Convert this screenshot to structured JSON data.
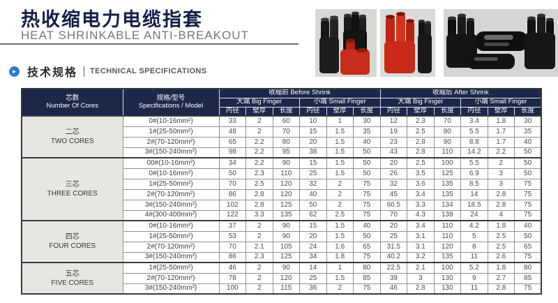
{
  "page": {
    "title_cn": "热收缩电力电缆指套",
    "title_en": "HEAT SHRINKABLE ANTI-BREAKOUT",
    "section_cn": "技术规格",
    "section_en": "TECHNICAL SPECIFICATIONS"
  },
  "icons": {
    "section_bullet": "arrow-right-circle",
    "section_bullet_glyph": "►"
  },
  "colors": {
    "title_navy": "#131f46",
    "header_navy": "#1c2749",
    "group_cell_gray": "#e7e6e3",
    "accent_blue": "#2e7fc0",
    "product_red": "#c62d1d",
    "product_black": "#171717",
    "photo_background": "#d8d7d4"
  },
  "table": {
    "header": {
      "cores_cn": "芯数",
      "cores_en": "Number Of Cores",
      "spec_cn": "规格/型号",
      "spec_en": "Specifications / Model",
      "before_shrink": "收缩前 Before Shrink",
      "after_shrink": "收缩后 After Shrink",
      "big_finger": "大端 Big Finger",
      "small_finger": "小端 Small Finger",
      "sub": [
        "内径",
        "壁厚",
        "长度"
      ]
    },
    "groups": [
      {
        "name_cn": "二芯",
        "name_en": "TWO CORES",
        "rows": [
          {
            "model": "0#(10-16mm²)",
            "values": [
              33,
              2,
              60,
              10,
              1,
              30,
              12,
              2.3,
              70,
              3.4,
              1.8,
              30
            ]
          },
          {
            "model": "1#(25-50mm²)",
            "values": [
              48,
              2,
              70,
              15,
              1.5,
              35,
              19,
              2.5,
              80,
              5.5,
              1.7,
              35
            ]
          },
          {
            "model": "2#(70-120mm²)",
            "values": [
              65,
              2.2,
              80,
              20,
              1.5,
              40,
              23,
              2.8,
              90,
              8.8,
              1.7,
              40
            ]
          },
          {
            "model": "3#(150-240mm²)",
            "values": [
              98,
              2.2,
              95,
              38,
              1.5,
              50,
              43,
              2.8,
              110,
              14.2,
              2.2,
              50
            ]
          }
        ]
      },
      {
        "name_cn": "三芯",
        "name_en": "THREE CORES",
        "rows": [
          {
            "model": "00#(10-16mm²)",
            "values": [
              34,
              2.2,
              90,
              15,
              1.5,
              50,
              20,
              2.5,
              100,
              5.5,
              2,
              50
            ]
          },
          {
            "model": "0#(10-16mm²)",
            "values": [
              50,
              2.3,
              110,
              25,
              1.5,
              50,
              26,
              3.5,
              125,
              6.9,
              3,
              50
            ]
          },
          {
            "model": "1#(25-50mm²)",
            "values": [
              70,
              2.5,
              120,
              32,
              2,
              75,
              32,
              3.6,
              135,
              8.5,
              3,
              75
            ]
          },
          {
            "model": "2#(70-120mm²)",
            "values": [
              86,
              2.8,
              120,
              40,
              2,
              75,
              45,
              3.4,
              135,
              14,
              2.8,
              75
            ]
          },
          {
            "model": "3#(150-240mm²)",
            "values": [
              102,
              2.8,
              125,
              50,
              2,
              75,
              60.5,
              3.3,
              134,
              18.5,
              2.8,
              75
            ]
          },
          {
            "model": "4#(300-400mm²)",
            "values": [
              122,
              3.3,
              135,
              62,
              2.5,
              75,
              70,
              4.3,
              138,
              24,
              4,
              75
            ]
          }
        ]
      },
      {
        "name_cn": "四芯",
        "name_en": "FOUR CORES",
        "rows": [
          {
            "model": "0#(10-16mm²)",
            "values": [
              37,
              2,
              90,
              15,
              1.5,
              40,
              20,
              3.4,
              110,
              4.2,
              1.8,
              40
            ]
          },
          {
            "model": "1#(25-50mm²)",
            "values": [
              53,
              2,
              90,
              20,
              1.5,
              50,
              25,
              3.1,
              110,
              5,
              2.5,
              50
            ]
          },
          {
            "model": "2#(70-120mm²)",
            "values": [
              70,
              2.1,
              105,
              24,
              1.6,
              65,
              31.5,
              3.1,
              120,
              8,
              2.5,
              65
            ]
          },
          {
            "model": "3#(150-240mm²)",
            "values": [
              86,
              2.3,
              125,
              34,
              1.8,
              75,
              40.2,
              3.2,
              135,
              11,
              2.6,
              75
            ]
          }
        ]
      },
      {
        "name_cn": "五芯",
        "name_en": "FIVE CORES",
        "rows": [
          {
            "model": "1#(25-50mm²)",
            "values": [
              46,
              2,
              90,
              14,
              1,
              80,
              22.5,
              2.1,
              100,
              5.2,
              1.8,
              80
            ]
          },
          {
            "model": "2#(70-120mm²)",
            "values": [
              78,
              2,
              120,
              25,
              1.5,
              85,
              39,
              3,
              130,
              9,
              2.7,
              85
            ]
          },
          {
            "model": "3#(150-240mm²)",
            "values": [
              100,
              2,
              115,
              36,
              2,
              75,
              46,
              2.8,
              130,
              11,
              2.8,
              75
            ]
          }
        ]
      }
    ]
  }
}
